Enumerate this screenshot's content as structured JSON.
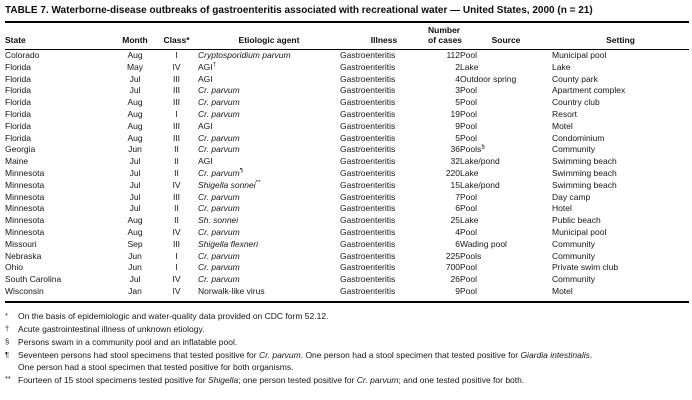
{
  "title": "TABLE 7. Waterborne-disease outbreaks of gastroenteritis associated with recreational water — United States, 2000 (n = 21)",
  "table": {
    "headers": {
      "state": "State",
      "month": "Month",
      "class": "Class",
      "class_sup": "*",
      "agent": "Etiologic agent",
      "illness": "Illness",
      "cases_line1": "Number",
      "cases_line2": "of cases",
      "source": "Source",
      "setting": "Setting"
    },
    "rows": [
      [
        "Colorado",
        "Aug",
        "I",
        {
          "t": "Cryptosporidium parvum",
          "i": 1
        },
        "Gastroenteritis",
        "112",
        "Pool",
        "Municipal pool"
      ],
      [
        "Florida",
        "May",
        "IV",
        {
          "t": "AGI",
          "s": "†"
        },
        "Gastroenteritis",
        "2",
        "Lake",
        "Lake"
      ],
      [
        "Florida",
        "Jul",
        "III",
        "AGI",
        "Gastroenteritis",
        "4",
        "Outdoor spring",
        "County park"
      ],
      [
        "Florida",
        "Jul",
        "III",
        {
          "t": "Cr. parvum",
          "i": 1
        },
        "Gastroenteritis",
        "3",
        "Pool",
        "Apartment complex"
      ],
      [
        "Florida",
        "Aug",
        "III",
        {
          "t": "Cr. parvum",
          "i": 1
        },
        "Gastroenteritis",
        "5",
        "Pool",
        "Country club"
      ],
      [
        "Florida",
        "Aug",
        "I",
        {
          "t": "Cr. parvum",
          "i": 1
        },
        "Gastroenteritis",
        "19",
        "Pool",
        "Resort"
      ],
      [
        "Florida",
        "Aug",
        "III",
        "AGI",
        "Gastroenteritis",
        "9",
        "Pool",
        "Motel"
      ],
      [
        "Florida",
        "Aug",
        "III",
        {
          "t": "Cr. parvum",
          "i": 1
        },
        "Gastroenteritis",
        "5",
        "Pool",
        "Condominium"
      ],
      [
        "Georgia",
        "Jun",
        "II",
        {
          "t": "Cr. parvum",
          "i": 1
        },
        "Gastroenteritis",
        "36",
        {
          "t": "Pools",
          "s": "§"
        },
        "Community"
      ],
      [
        "Maine",
        "Jul",
        "II",
        "AGI",
        "Gastroenteritis",
        "32",
        "Lake/pond",
        "Swimming beach"
      ],
      [
        "Minnesota",
        "Jul",
        "II",
        {
          "t": "Cr. parvum",
          "i": 1,
          "s": "¶"
        },
        "Gastroenteritis",
        "220",
        "Lake",
        "Swimming beach"
      ],
      [
        "Minnesota",
        "Jul",
        "IV",
        {
          "t": "Shigella sonnei",
          "i": 1,
          "s": "**"
        },
        "Gastroenteritis",
        "15",
        "Lake/pond",
        "Swimming beach"
      ],
      [
        "Minnesota",
        "Jul",
        "III",
        {
          "t": "Cr. parvum",
          "i": 1
        },
        "Gastroenteritis",
        "7",
        "Pool",
        "Day camp"
      ],
      [
        "Minnesota",
        "Jul",
        "II",
        {
          "t": "Cr. parvum",
          "i": 1
        },
        "Gastroenteritis",
        "6",
        "Pool",
        "Hotel"
      ],
      [
        "Minnesota",
        "Aug",
        "II",
        {
          "t": "Sh. sonnei",
          "i": 1
        },
        "Gastroenteritis",
        "25",
        "Lake",
        "Public beach"
      ],
      [
        "Minnesota",
        "Aug",
        "IV",
        {
          "t": "Cr. parvum",
          "i": 1
        },
        "Gastroenteritis",
        "4",
        "Pool",
        "Municipal pool"
      ],
      [
        "Missouri",
        "Sep",
        "III",
        {
          "t": "Shigella flexneri",
          "i": 1
        },
        "Gastroenteritis",
        "6",
        "Wading pool",
        "Community"
      ],
      [
        "Nebraska",
        "Jun",
        "I",
        {
          "t": "Cr. parvum",
          "i": 1
        },
        "Gastroenteritis",
        "225",
        "Pools",
        "Community"
      ],
      [
        "Ohio",
        "Jun",
        "I",
        {
          "t": "Cr. parvum",
          "i": 1
        },
        "Gastroenteritis",
        "700",
        "Pool",
        "Private swim club"
      ],
      [
        "South Carolina",
        "Jul",
        "IV",
        {
          "t": "Cr. parvum",
          "i": 1
        },
        "Gastroenteritis",
        "26",
        "Pool",
        "Community"
      ],
      [
        "Wisconsin",
        "Jan",
        "IV",
        "Norwalk-like virus",
        "Gastroenteritis",
        "9",
        "Pool",
        "Motel"
      ]
    ]
  },
  "footnotes": [
    {
      "marker": "*",
      "parts": [
        {
          "t": "On the basis of epidemiologic and water-quality data provided on CDC form 52.12."
        }
      ]
    },
    {
      "marker": "†",
      "parts": [
        {
          "t": "Acute gastrointestinal illness of unknown etiology."
        }
      ]
    },
    {
      "marker": "§",
      "parts": [
        {
          "t": "Persons swam in a community pool and an inflatable pool."
        }
      ]
    },
    {
      "marker": "¶",
      "parts": [
        {
          "t": "Seventeen persons had stool specimens that tested positive for "
        },
        {
          "t": "Cr. parvum",
          "i": 1
        },
        {
          "t": ". One person had a stool specimen that tested positive for "
        },
        {
          "t": "Giardia intestinalis",
          "i": 1
        },
        {
          "t": "."
        },
        {
          "br": 1
        },
        {
          "t": "One person had a stool specimen that tested positive for both organisms."
        }
      ]
    },
    {
      "marker": "**",
      "parts": [
        {
          "t": "Fourteen of 15 stool specimens tested positive for "
        },
        {
          "t": "Shigella",
          "i": 1
        },
        {
          "t": "; one person tested positive for "
        },
        {
          "t": "Cr. parvum",
          "i": 1
        },
        {
          "t": "; and one tested positive for both."
        }
      ]
    }
  ]
}
